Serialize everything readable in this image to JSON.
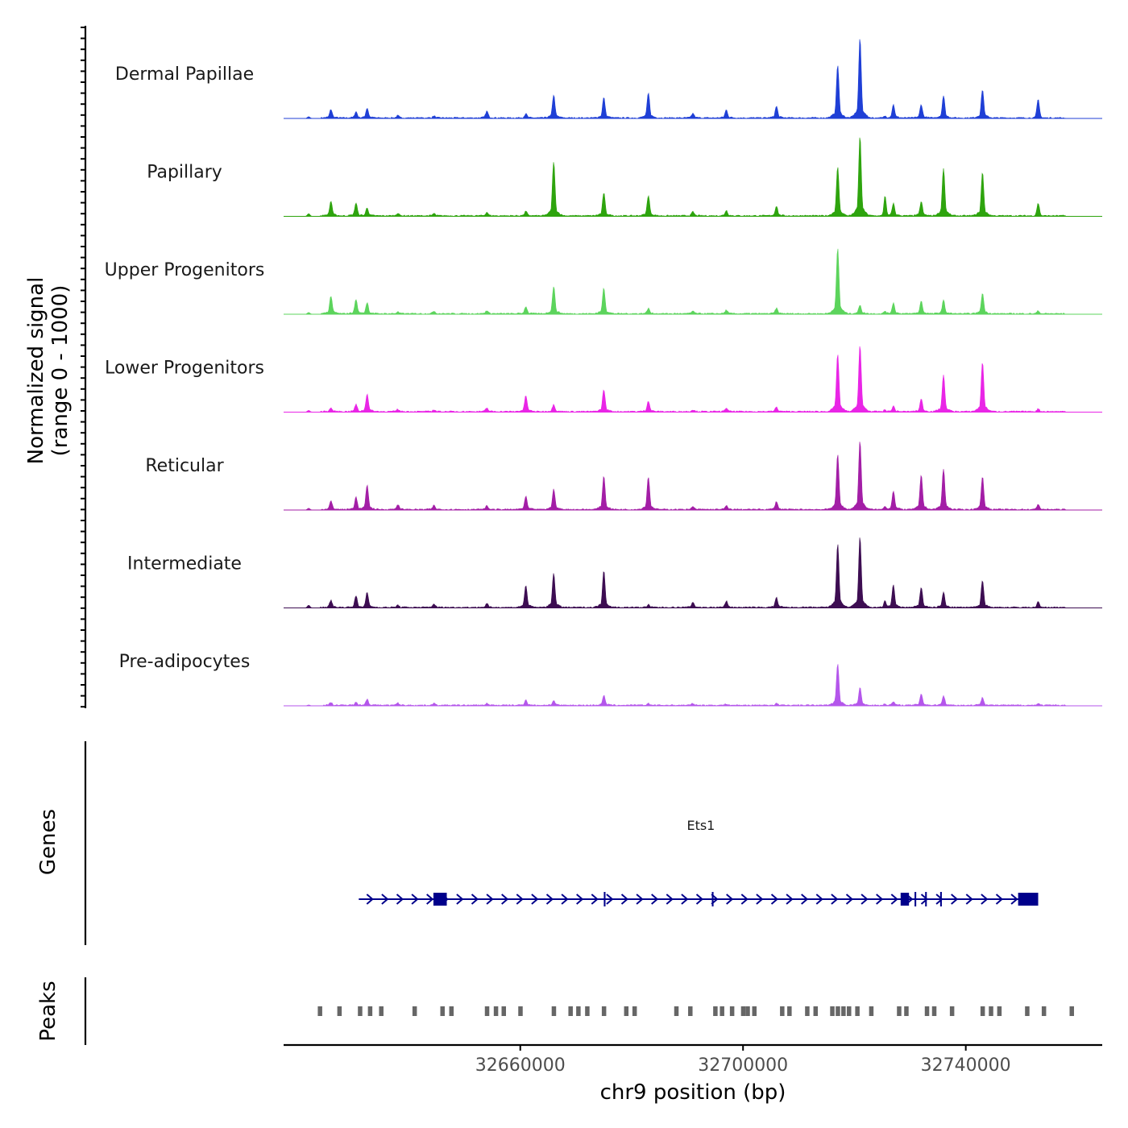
{
  "chart_data": {
    "type": "area",
    "title": "",
    "chromosome": "chr9",
    "xlabel": "chr9 position (bp)",
    "xlim": [
      32617500,
      32764500
    ],
    "xticks": [
      32660000,
      32700000,
      32740000
    ],
    "ylabel_signal": [
      "Normalized signal",
      "(range 0 - 1000)"
    ],
    "ylim": [
      0,
      1000
    ],
    "ylabel_genes": "Genes",
    "ylabel_peaks": "Peaks",
    "peak_positions": [
      32622000,
      32626000,
      32630500,
      32632500,
      32638000,
      32644500,
      32654000,
      32661000,
      32666000,
      32675000,
      32683000,
      32691000,
      32697000,
      32706000,
      32717000,
      32721000,
      32727000,
      32732000,
      32736000,
      32743000
    ],
    "tracks": [
      {
        "name": "Dermal Papillae",
        "color": "#1F3FD6",
        "values": [
          20,
          95,
          70,
          110,
          25,
          20,
          75,
          45,
          260,
          230,
          280,
          50,
          90,
          130,
          600,
          900,
          150,
          150,
          250,
          320,
          110,
          210,
          210,
          20
        ]
      },
      {
        "name": "Papillary",
        "color": "#2EA40E",
        "values": [
          30,
          165,
          145,
          90,
          30,
          25,
          40,
          50,
          615,
          260,
          230,
          45,
          60,
          110,
          550,
          900,
          140,
          160,
          540,
          490,
          290,
          120,
          140,
          230
        ]
      },
      {
        "name": "Upper Progenitors",
        "color": "#5CD45C",
        "values": [
          20,
          200,
          160,
          125,
          20,
          30,
          35,
          80,
          310,
          290,
          60,
          30,
          40,
          60,
          740,
          100,
          120,
          140,
          150,
          230,
          220,
          90,
          30,
          30
        ]
      },
      {
        "name": "Lower Progenitors",
        "color": "#E925E6",
        "values": [
          20,
          40,
          80,
          200,
          25,
          20,
          40,
          180,
          80,
          250,
          120,
          20,
          40,
          50,
          650,
          750,
          60,
          140,
          420,
          560,
          40,
          30,
          30,
          20
        ]
      },
      {
        "name": "Reticular",
        "color": "#A31EA6",
        "values": [
          20,
          95,
          140,
          280,
          55,
          45,
          40,
          145,
          230,
          380,
          370,
          30,
          40,
          90,
          620,
          780,
          210,
          390,
          460,
          370,
          70,
          50,
          60,
          40
        ]
      },
      {
        "name": "Intermediate",
        "color": "#3D0D52",
        "values": [
          30,
          80,
          130,
          170,
          25,
          40,
          40,
          250,
          390,
          420,
          30,
          60,
          70,
          110,
          720,
          800,
          250,
          230,
          170,
          310,
          110,
          50,
          60,
          80
        ]
      },
      {
        "name": "Pre-adipocytes",
        "color": "#B456EB",
        "values": [
          10,
          30,
          40,
          70,
          25,
          20,
          20,
          60,
          50,
          110,
          20,
          20,
          15,
          20,
          470,
          200,
          40,
          130,
          110,
          90,
          20,
          25,
          20,
          15
        ]
      }
    ],
    "gene": {
      "name": "Ets1",
      "strand": "+",
      "start": 32631000,
      "end": 32753000,
      "exons": [
        [
          32644400,
          32646800
        ],
        [
          32675000,
          32675300
        ],
        [
          32694400,
          32694700
        ],
        [
          32728300,
          32729800
        ],
        [
          32730800,
          32731100
        ],
        [
          32732700,
          32733000
        ],
        [
          32735400,
          32735700
        ],
        [
          32749400,
          32753000
        ]
      ]
    }
  }
}
